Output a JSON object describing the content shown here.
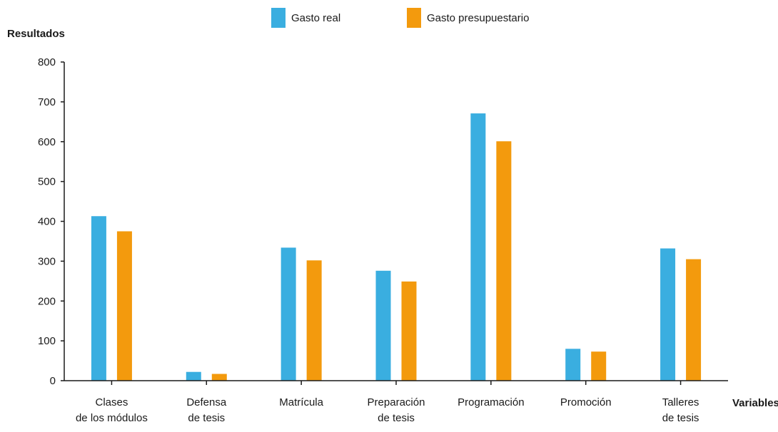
{
  "chart_data": {
    "type": "bar",
    "title": "",
    "ylabel": "Resultados",
    "xlabel": "Variables",
    "ylim": [
      0,
      800
    ],
    "yticks": [
      0,
      100,
      200,
      300,
      400,
      500,
      600,
      700,
      800
    ],
    "grid": false,
    "legend_position": "top-center",
    "categories": [
      [
        "Clases",
        "de los módulos"
      ],
      [
        "Defensa",
        "de tesis"
      ],
      [
        "Matrícula"
      ],
      [
        "Preparación",
        "de tesis"
      ],
      [
        "Programación"
      ],
      [
        "Promoción"
      ],
      [
        "Talleres",
        "de tesis"
      ]
    ],
    "series": [
      {
        "name": "Gasto real",
        "color": "#3aaee0",
        "values": [
          413,
          22,
          334,
          276,
          671,
          80,
          332
        ]
      },
      {
        "name": "Gasto presupuestario",
        "color": "#f39a0d",
        "values": [
          375,
          17,
          302,
          249,
          601,
          73,
          305
        ]
      }
    ]
  }
}
